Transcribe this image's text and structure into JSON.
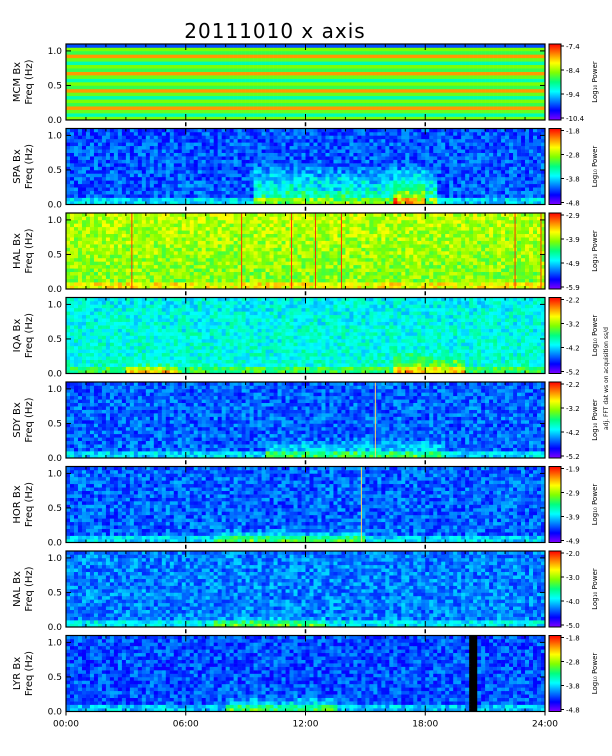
{
  "chart_data": {
    "type": "heatmap",
    "title": "20111010  x axis",
    "xlabel": "",
    "xlim": [
      0,
      24
    ],
    "x_tick_labels": [
      "00:00",
      "06:00",
      "12:00",
      "18:00",
      "24:00"
    ],
    "ylim": [
      0,
      1.1
    ],
    "y_tick_labels": [
      "0.0",
      "0.5",
      "1.0"
    ],
    "colorbar_label": "Log₁₀ Power",
    "colormap": [
      "#7f00ff",
      "#0000ff",
      "#0080ff",
      "#00ffff",
      "#00ff80",
      "#80ff00",
      "#ffff00",
      "#ff8000",
      "#ff0000"
    ],
    "side_note": "adj. FFT dat ws on acquisition ss/d",
    "panels": [
      {
        "station": "MCM Bx",
        "ylabel_line1": "MCM Bx",
        "ylabel_line2": "Freq (Hz)",
        "cb_ticks": [
          "-7.4",
          "-8.4",
          "-9.4",
          "-10.4"
        ],
        "style": "bands",
        "base": 0.55,
        "top": 0.6,
        "events": []
      },
      {
        "station": "SPA Bx",
        "ylabel_line1": "SPA Bx",
        "ylabel_line2": "Freq (Hz)",
        "cb_ticks": [
          "-1.8",
          "-2.8",
          "-3.8",
          "-4.8"
        ],
        "style": "noise",
        "base": 0.22,
        "top": 0.2,
        "events": [
          {
            "t0": 9.5,
            "t1": 18.5,
            "fmax": 0.6,
            "level": 0.35
          },
          {
            "t0": 16.5,
            "t1": 18.0,
            "fmax": 0.55,
            "level": 0.25
          }
        ]
      },
      {
        "station": "HAL Bx",
        "ylabel_line1": "HAL Bx",
        "ylabel_line2": "Freq (Hz)",
        "cb_ticks": [
          "-2.9",
          "-3.9",
          "-4.9",
          "-5.9"
        ],
        "style": "noise",
        "base": 0.62,
        "top": 0.68,
        "events": [],
        "lines": [
          3.3,
          8.8,
          11.3,
          12.5,
          13.8,
          22.5,
          23.8
        ]
      },
      {
        "station": "IQA Bx",
        "ylabel_line1": "IQA Bx",
        "ylabel_line2": "Freq (Hz)",
        "cb_ticks": [
          "-2.2",
          "-3.2",
          "-4.2",
          "-5.2"
        ],
        "style": "noise",
        "base": 0.42,
        "top": 0.38,
        "events": [
          {
            "t0": 3.0,
            "t1": 5.5,
            "fmax": 0.15,
            "level": 0.35
          },
          {
            "t0": 16.5,
            "t1": 20.0,
            "fmax": 0.35,
            "level": 0.3
          }
        ]
      },
      {
        "station": "SDY Bx",
        "ylabel_line1": "SDY Bx",
        "ylabel_line2": "Freq (Hz)",
        "cb_ticks": [
          "-2.2",
          "-3.2",
          "-4.2",
          "-5.2"
        ],
        "style": "noise",
        "base": 0.22,
        "top": 0.22,
        "events": [
          {
            "t0": 10.0,
            "t1": 19.0,
            "fmax": 0.3,
            "level": 0.25
          }
        ],
        "lines": [
          15.5
        ]
      },
      {
        "station": "HOR Bx",
        "ylabel_line1": "HOR Bx",
        "ylabel_line2": "Freq (Hz)",
        "cb_ticks": [
          "-1.9",
          "-2.9",
          "-3.9",
          "-4.9"
        ],
        "style": "noise",
        "base": 0.22,
        "top": 0.22,
        "events": [
          {
            "t0": 7.5,
            "t1": 15.0,
            "fmax": 0.2,
            "level": 0.3
          }
        ],
        "lines": [
          14.8
        ]
      },
      {
        "station": "NAL Bx",
        "ylabel_line1": "NAL Bx",
        "ylabel_line2": "Freq (Hz)",
        "cb_ticks": [
          "-2.0",
          "-3.0",
          "-4.0",
          "-5.0"
        ],
        "style": "noise",
        "base": 0.25,
        "top": 0.25,
        "events": [
          {
            "t0": 7.5,
            "t1": 13.0,
            "fmax": 0.15,
            "level": 0.3
          }
        ]
      },
      {
        "station": "LYR Bx",
        "ylabel_line1": "LYR Bx",
        "ylabel_line2": "Freq (Hz)",
        "cb_ticks": [
          "-1.8",
          "-2.8",
          "-3.8",
          "-4.8"
        ],
        "style": "noise",
        "base": 0.2,
        "top": 0.2,
        "events": [
          {
            "t0": 8.0,
            "t1": 13.5,
            "fmax": 0.25,
            "level": 0.3
          }
        ],
        "gap": [
          20.3,
          20.6
        ]
      }
    ]
  }
}
